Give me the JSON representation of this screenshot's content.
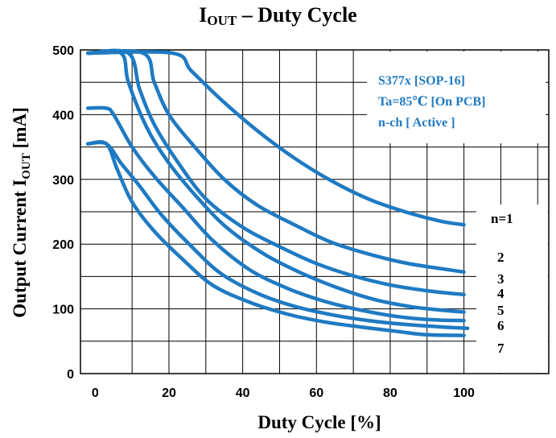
{
  "chart_data": {
    "type": "line",
    "title": {
      "main": "I",
      "sub": "OUT",
      "rest": " – Duty Cycle"
    },
    "xlabel": "Duty Cycle [%]",
    "ylabel": {
      "main": "Output Current I",
      "sub": "OUT",
      "rest": " [mA]"
    },
    "xlim": [
      -4,
      123
    ],
    "ylim": [
      0,
      500
    ],
    "xticks": [
      0,
      20,
      40,
      60,
      80,
      100
    ],
    "yticks": [
      0,
      100,
      200,
      300,
      400,
      500
    ],
    "grid": true,
    "annotations": [
      "S377x [SOP-16]",
      "Ta=85℃  [On PCB]",
      "n-ch [ Active ]"
    ],
    "color": "#1f7ac2",
    "series": [
      {
        "name": "n=1",
        "points": [
          [
            -2,
            495
          ],
          [
            21,
            495
          ],
          [
            26,
            468
          ],
          [
            34,
            424
          ],
          [
            44,
            375
          ],
          [
            54,
            333
          ],
          [
            64,
            298
          ],
          [
            74,
            270
          ],
          [
            84,
            250
          ],
          [
            94,
            235
          ],
          [
            100,
            230
          ]
        ]
      },
      {
        "name": "2",
        "points": [
          [
            -2,
            495
          ],
          [
            13,
            495
          ],
          [
            16,
            450
          ],
          [
            20,
            400
          ],
          [
            27,
            350
          ],
          [
            35,
            300
          ],
          [
            44,
            260
          ],
          [
            54,
            230
          ],
          [
            64,
            203
          ],
          [
            74,
            185
          ],
          [
            84,
            171
          ],
          [
            94,
            162
          ],
          [
            100,
            157
          ]
        ]
      },
      {
        "name": "3",
        "points": [
          [
            -2,
            495
          ],
          [
            9,
            495
          ],
          [
            12,
            440
          ],
          [
            16,
            385
          ],
          [
            22,
            330
          ],
          [
            30,
            270
          ],
          [
            40,
            226
          ],
          [
            50,
            196
          ],
          [
            60,
            170
          ],
          [
            70,
            151
          ],
          [
            80,
            137
          ],
          [
            90,
            128
          ],
          [
            100,
            122
          ]
        ]
      },
      {
        "name": "4",
        "points": [
          [
            -2,
            495
          ],
          [
            7,
            495
          ],
          [
            9,
            450
          ],
          [
            14,
            380
          ],
          [
            20,
            325
          ],
          [
            28,
            270
          ],
          [
            36,
            224
          ],
          [
            46,
            184
          ],
          [
            56,
            155
          ],
          [
            66,
            132
          ],
          [
            76,
            114
          ],
          [
            86,
            103
          ],
          [
            94,
            98
          ],
          [
            100,
            95
          ]
        ]
      },
      {
        "name": "5",
        "points": [
          [
            -2,
            410
          ],
          [
            3,
            410
          ],
          [
            5,
            400
          ],
          [
            10,
            350
          ],
          [
            16,
            305
          ],
          [
            24,
            255
          ],
          [
            32,
            205
          ],
          [
            42,
            160
          ],
          [
            52,
            132
          ],
          [
            62,
            112
          ],
          [
            72,
            98
          ],
          [
            82,
            88
          ],
          [
            92,
            83
          ],
          [
            100,
            82
          ]
        ]
      },
      {
        "name": "6",
        "points": [
          [
            -2,
            355
          ],
          [
            3,
            355
          ],
          [
            7,
            325
          ],
          [
            12,
            290
          ],
          [
            18,
            245
          ],
          [
            26,
            197
          ],
          [
            34,
            155
          ],
          [
            44,
            124
          ],
          [
            54,
            104
          ],
          [
            64,
            91
          ],
          [
            74,
            82
          ],
          [
            84,
            76
          ],
          [
            94,
            72
          ],
          [
            101,
            70
          ]
        ]
      },
      {
        "name": "7",
        "points": [
          [
            -2,
            355
          ],
          [
            3,
            355
          ],
          [
            6,
            315
          ],
          [
            10,
            265
          ],
          [
            16,
            220
          ],
          [
            24,
            175
          ],
          [
            32,
            136
          ],
          [
            42,
            110
          ],
          [
            52,
            92
          ],
          [
            62,
            80
          ],
          [
            72,
            72
          ],
          [
            82,
            65
          ],
          [
            90,
            60
          ],
          [
            100,
            59
          ]
        ]
      }
    ]
  }
}
